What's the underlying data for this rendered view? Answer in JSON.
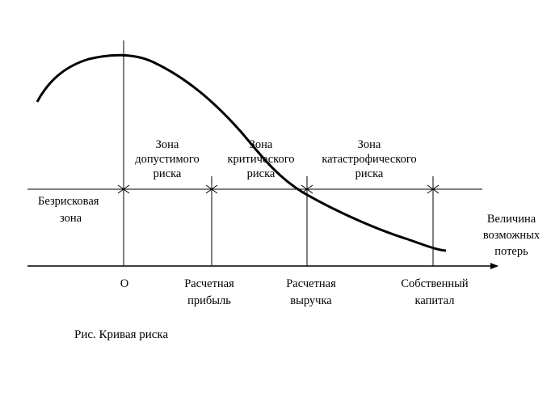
{
  "diagram": {
    "zones": {
      "riskless": [
        "Безрисковая",
        "зона"
      ],
      "acceptable": [
        "Зона",
        "допустимого",
        "риска"
      ],
      "critical": [
        "Зона",
        "критического",
        "риска"
      ],
      "catastrophic": [
        "Зона",
        "катастрофического",
        "риска"
      ]
    },
    "axis": {
      "x_label": [
        "Величина",
        "возможных",
        "потерь"
      ],
      "origin": "O",
      "ticks": [
        [
          "Расчетная",
          "прибыль"
        ],
        [
          "Расчетная",
          "выручка"
        ],
        [
          "Собственный",
          "капитал"
        ]
      ]
    },
    "caption": "Рис. Кривая риска",
    "colors": {
      "line": "#000000",
      "background": "#ffffff"
    }
  }
}
